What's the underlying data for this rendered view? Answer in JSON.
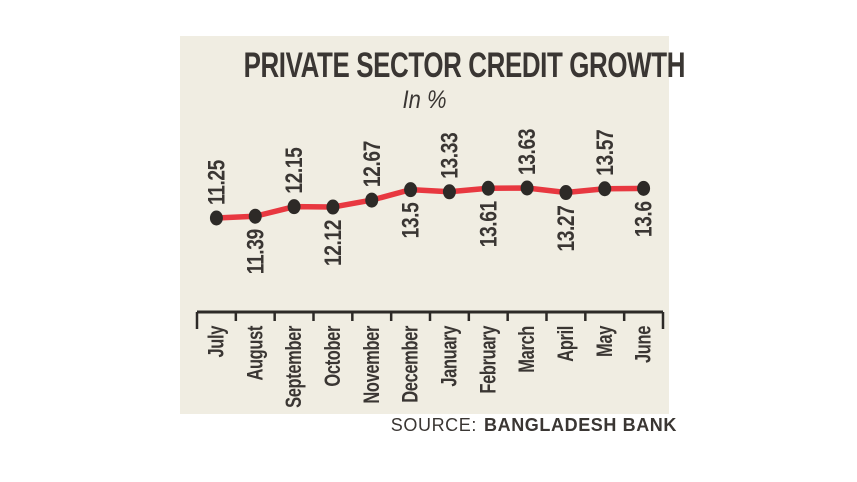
{
  "chart_data": {
    "type": "line",
    "title": "PRIVATE SECTOR CREDIT GROWTH",
    "subtitle": "In %",
    "categories": [
      "July",
      "August",
      "September",
      "October",
      "November",
      "December",
      "January",
      "February",
      "March",
      "April",
      "May",
      "June"
    ],
    "values": [
      11.25,
      11.39,
      12.15,
      12.12,
      12.67,
      13.5,
      13.33,
      13.61,
      13.63,
      13.27,
      13.57,
      13.6
    ],
    "value_label_texts": [
      "11.25",
      "11.39",
      "12.15",
      "12.12",
      "12.67",
      "13.5",
      "13.33",
      "13.61",
      "13.63",
      "13.27",
      "13.57",
      "13.6"
    ],
    "xlabel": "",
    "ylabel": "",
    "ylim": [
      11.25,
      13.63
    ],
    "grid": false,
    "legend": "none",
    "layout_hints": {
      "value_labels": "rotated 90deg, alternating above/below line starting above",
      "x_labels": "rotated 90deg below ticked axis",
      "y_axis": "hidden"
    },
    "colors": {
      "line": "#e83840",
      "marker": "#2d2a27",
      "text": "#3a3633",
      "axis": "#2d2a27",
      "panel_background": "#f0ede2",
      "page_background": "#ffffff"
    }
  },
  "source": {
    "label": "SOURCE:",
    "value": "BANGLADESH BANK"
  }
}
